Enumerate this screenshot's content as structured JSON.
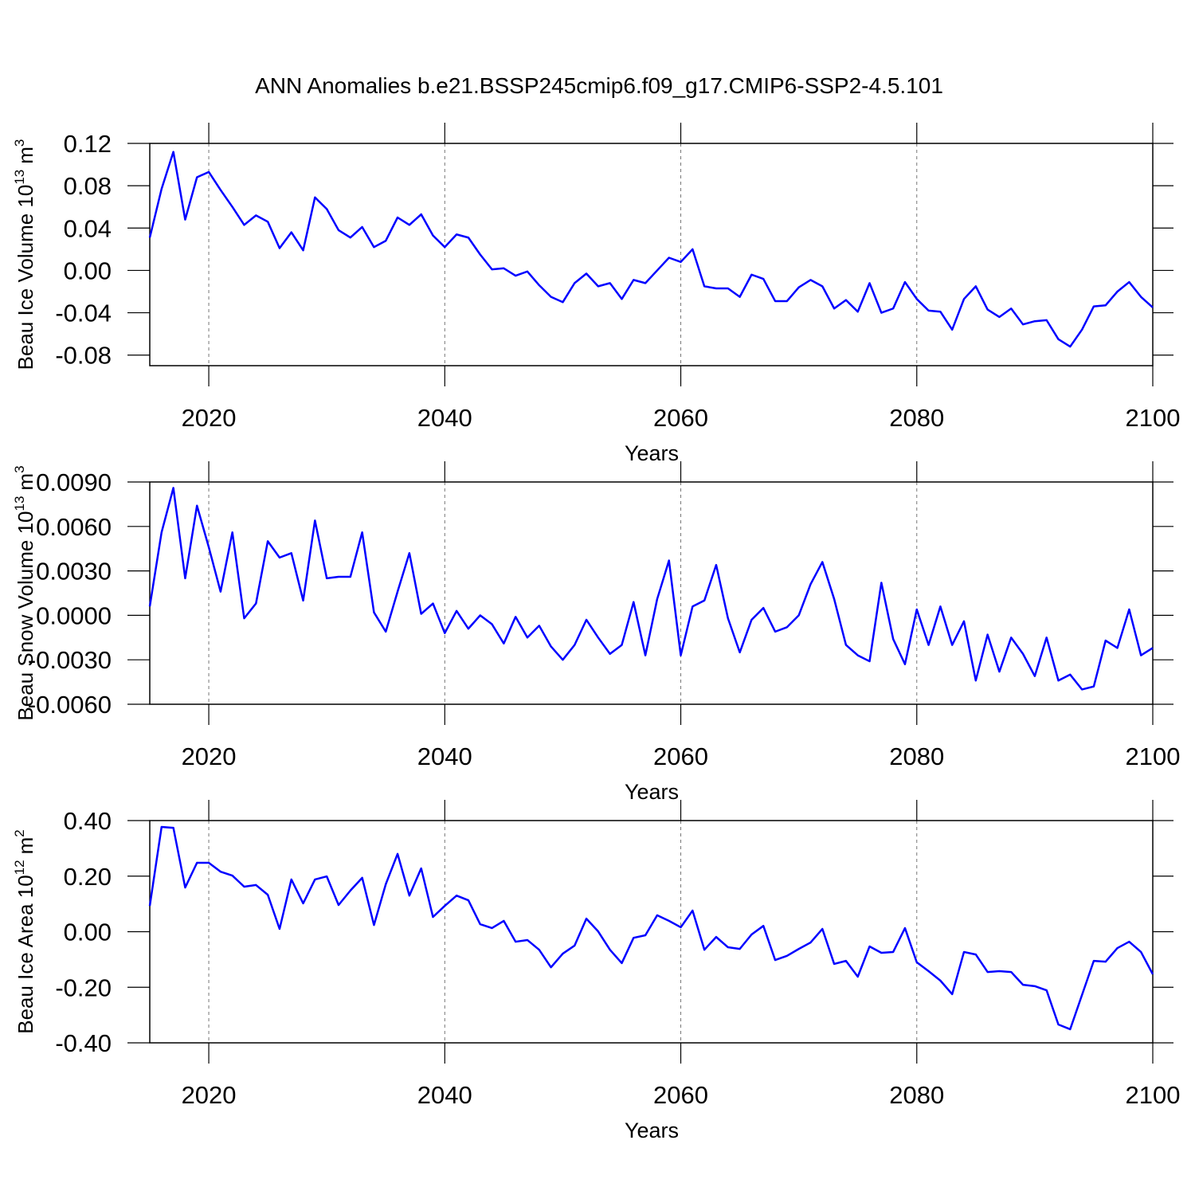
{
  "title": "ANN Anomalies b.e21.BSSP245cmip6.f09_g17.CMIP6-SSP2-4.5.101",
  "chart_data": [
    {
      "type": "line",
      "xlabel": "Years",
      "ylabel": "Beau Ice Volume 10",
      "ylabel_exponent": "13",
      "ylabel_unit": "m",
      "ylabel_unit_exponent": "3",
      "color": "#0000ff",
      "grid": true,
      "x": [
        2015,
        2016,
        2017,
        2018,
        2019,
        2020,
        2021,
        2022,
        2023,
        2024,
        2025,
        2026,
        2027,
        2028,
        2029,
        2030,
        2031,
        2032,
        2033,
        2034,
        2035,
        2036,
        2037,
        2038,
        2039,
        2040,
        2041,
        2042,
        2043,
        2044,
        2045,
        2046,
        2047,
        2048,
        2049,
        2050,
        2051,
        2052,
        2053,
        2054,
        2055,
        2056,
        2057,
        2058,
        2059,
        2060,
        2061,
        2062,
        2063,
        2064,
        2065,
        2066,
        2067,
        2068,
        2069,
        2070,
        2071,
        2072,
        2073,
        2074,
        2075,
        2076,
        2077,
        2078,
        2079,
        2080,
        2081,
        2082,
        2083,
        2084,
        2085,
        2086,
        2087,
        2088,
        2089,
        2090,
        2091,
        2092,
        2093,
        2094,
        2095,
        2096,
        2097,
        2098,
        2099,
        2100
      ],
      "values": [
        0.031,
        0.077,
        0.112,
        0.048,
        0.088,
        0.093,
        0.076,
        0.06,
        0.043,
        0.052,
        0.046,
        0.021,
        0.036,
        0.019,
        0.069,
        0.058,
        0.038,
        0.031,
        0.041,
        0.022,
        0.028,
        0.05,
        0.043,
        0.053,
        0.033,
        0.022,
        0.034,
        0.031,
        0.015,
        0.001,
        0.002,
        -0.005,
        -0.001,
        -0.014,
        -0.025,
        -0.03,
        -0.012,
        -0.003,
        -0.015,
        -0.012,
        -0.027,
        -0.009,
        -0.012,
        0.0,
        0.012,
        0.008,
        0.02,
        -0.015,
        -0.017,
        -0.017,
        -0.025,
        -0.004,
        -0.008,
        -0.029,
        -0.029,
        -0.016,
        -0.009,
        -0.015,
        -0.036,
        -0.028,
        -0.039,
        -0.012,
        -0.04,
        -0.036,
        -0.011,
        -0.027,
        -0.038,
        -0.039,
        -0.056,
        -0.027,
        -0.015,
        -0.037,
        -0.044,
        -0.036,
        -0.051,
        -0.048,
        -0.047,
        -0.065,
        -0.072,
        -0.056,
        -0.034,
        -0.033,
        -0.02,
        -0.011,
        -0.025,
        -0.035
      ],
      "xlim": [
        2015,
        2100
      ],
      "xticks": [
        2020,
        2040,
        2060,
        2080,
        2100
      ],
      "ylim": [
        -0.09,
        0.12
      ],
      "yticks": [
        0.12,
        0.08,
        0.04,
        {
          "value": 0,
          "label": "0.00"
        },
        -0.04,
        -0.08
      ]
    },
    {
      "type": "line",
      "xlabel": "Years",
      "ylabel": "Beau Snow Volume 10",
      "ylabel_exponent": "13",
      "ylabel_unit": "m",
      "ylabel_unit_exponent": "3",
      "color": "#0000ff",
      "grid": true,
      "x": [
        2015,
        2016,
        2017,
        2018,
        2019,
        2020,
        2021,
        2022,
        2023,
        2024,
        2025,
        2026,
        2027,
        2028,
        2029,
        2030,
        2031,
        2032,
        2033,
        2034,
        2035,
        2036,
        2037,
        2038,
        2039,
        2040,
        2041,
        2042,
        2043,
        2044,
        2045,
        2046,
        2047,
        2048,
        2049,
        2050,
        2051,
        2052,
        2053,
        2054,
        2055,
        2056,
        2057,
        2058,
        2059,
        2060,
        2061,
        2062,
        2063,
        2064,
        2065,
        2066,
        2067,
        2068,
        2069,
        2070,
        2071,
        2072,
        2073,
        2074,
        2075,
        2076,
        2077,
        2078,
        2079,
        2080,
        2081,
        2082,
        2083,
        2084,
        2085,
        2086,
        2087,
        2088,
        2089,
        2090,
        2091,
        2092,
        2093,
        2094,
        2095,
        2096,
        2097,
        2098,
        2099,
        2100
      ],
      "values": [
        0.0006,
        0.0056,
        0.0086,
        0.0025,
        0.0074,
        0.0046,
        0.0016,
        0.0056,
        -0.0002,
        0.0008,
        0.005,
        0.0039,
        0.0042,
        0.001,
        0.0064,
        0.0025,
        0.0026,
        0.0026,
        0.0056,
        0.0002,
        -0.0011,
        0.0016,
        0.0042,
        0.0001,
        0.0008,
        -0.0012,
        0.0003,
        -0.0009,
        0.0,
        -0.0006,
        -0.0019,
        -0.0001,
        -0.0015,
        -0.0007,
        -0.0021,
        -0.003,
        -0.002,
        -0.0003,
        -0.0015,
        -0.0026,
        -0.002,
        0.0009,
        -0.0027,
        0.0011,
        0.0037,
        -0.0027,
        0.0006,
        0.001,
        0.0034,
        -0.0002,
        -0.0025,
        -0.0003,
        0.0005,
        -0.0011,
        -0.0008,
        0.0,
        0.0021,
        0.0036,
        0.0011,
        -0.002,
        -0.0027,
        -0.0031,
        0.0022,
        -0.0016,
        -0.0033,
        0.0004,
        -0.002,
        0.0006,
        -0.002,
        -0.0004,
        -0.0044,
        -0.0013,
        -0.0038,
        -0.0015,
        -0.0026,
        -0.0041,
        -0.0015,
        -0.0044,
        -0.004,
        -0.005,
        -0.0048,
        -0.0017,
        -0.0022,
        0.0004,
        -0.0027,
        -0.0022
      ],
      "xlim": [
        2015,
        2100
      ],
      "xticks": [
        2020,
        2040,
        2060,
        2080,
        2100
      ],
      "ylim": [
        -0.006,
        0.009
      ],
      "yticks": [
        {
          "value": 0.009,
          "label": "0.0090"
        },
        {
          "value": 0.006,
          "label": "0.0060"
        },
        {
          "value": 0.003,
          "label": "0.0030"
        },
        {
          "value": 0,
          "label": "0.0000"
        },
        {
          "value": -0.003,
          "label": "-0.0030"
        },
        {
          "value": -0.006,
          "label": "-0.0060"
        }
      ]
    },
    {
      "type": "line",
      "xlabel": "Years",
      "ylabel": "Beau Ice Area 10",
      "ylabel_exponent": "12",
      "ylabel_unit": "m",
      "ylabel_unit_exponent": "2",
      "color": "#0000ff",
      "grid": true,
      "x": [
        2015,
        2016,
        2017,
        2018,
        2019,
        2020,
        2021,
        2022,
        2023,
        2024,
        2025,
        2026,
        2027,
        2028,
        2029,
        2030,
        2031,
        2032,
        2033,
        2034,
        2035,
        2036,
        2037,
        2038,
        2039,
        2040,
        2041,
        2042,
        2043,
        2044,
        2045,
        2046,
        2047,
        2048,
        2049,
        2050,
        2051,
        2052,
        2053,
        2054,
        2055,
        2056,
        2057,
        2058,
        2059,
        2060,
        2061,
        2062,
        2063,
        2064,
        2065,
        2066,
        2067,
        2068,
        2069,
        2070,
        2071,
        2072,
        2073,
        2074,
        2075,
        2076,
        2077,
        2078,
        2079,
        2080,
        2081,
        2082,
        2083,
        2084,
        2085,
        2086,
        2087,
        2088,
        2089,
        2090,
        2091,
        2092,
        2093,
        2094,
        2095,
        2096,
        2097,
        2098,
        2099,
        2100
      ],
      "values": [
        0.093,
        0.377,
        0.374,
        0.159,
        0.248,
        0.248,
        0.216,
        0.202,
        0.162,
        0.168,
        0.133,
        0.01,
        0.188,
        0.102,
        0.188,
        0.199,
        0.096,
        0.148,
        0.194,
        0.024,
        0.171,
        0.28,
        0.13,
        0.228,
        0.053,
        0.093,
        0.13,
        0.113,
        0.027,
        0.013,
        0.039,
        -0.036,
        -0.03,
        -0.065,
        -0.128,
        -0.079,
        -0.05,
        0.047,
        0.001,
        -0.065,
        -0.113,
        -0.022,
        -0.013,
        0.059,
        0.039,
        0.016,
        0.076,
        -0.065,
        -0.019,
        -0.056,
        -0.062,
        -0.01,
        0.021,
        -0.102,
        -0.087,
        -0.062,
        -0.039,
        0.01,
        -0.116,
        -0.105,
        -0.162,
        -0.053,
        -0.076,
        -0.073,
        0.013,
        -0.11,
        -0.142,
        -0.176,
        -0.225,
        -0.073,
        -0.082,
        -0.145,
        -0.142,
        -0.145,
        -0.191,
        -0.196,
        -0.211,
        -0.334,
        -0.351,
        -0.228,
        -0.105,
        -0.108,
        -0.059,
        -0.036,
        -0.073,
        -0.153
      ],
      "xlim": [
        2015,
        2100
      ],
      "xticks": [
        2020,
        2040,
        2060,
        2080,
        2100
      ],
      "ylim": [
        -0.4,
        0.4
      ],
      "yticks": [
        {
          "value": 0.4,
          "label": "0.40"
        },
        {
          "value": 0.2,
          "label": "0.20"
        },
        {
          "value": 0,
          "label": "0.00"
        },
        {
          "value": -0.2,
          "label": "-0.20"
        },
        {
          "value": -0.4,
          "label": "-0.40"
        }
      ]
    }
  ]
}
